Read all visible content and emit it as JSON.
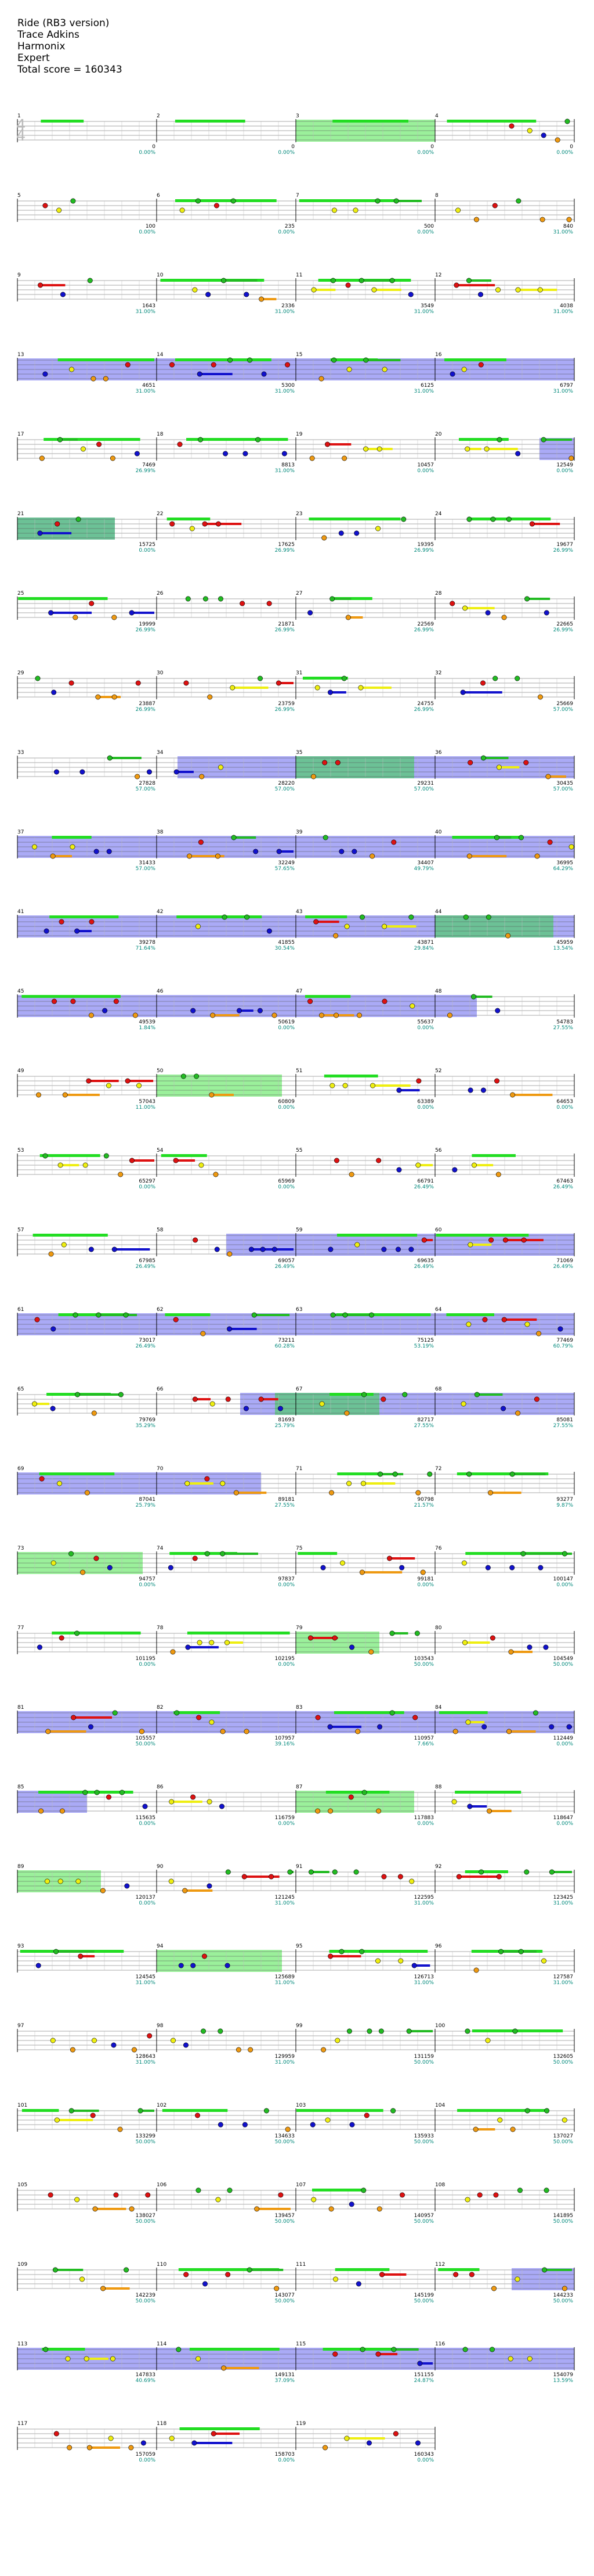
{
  "header": {
    "song": "Ride (RB3 version)",
    "artist": "Trace Adkins",
    "game": "Harmonix",
    "difficulty": "Expert",
    "total_score": "Total score = 160343"
  },
  "time_signature": {
    "top": "4",
    "bottom": "4"
  },
  "colors": {
    "green": "#22bb22",
    "red": "#dd1111",
    "yellow": "#eeee11",
    "blue": "#1111cc",
    "orange": "#ee9911",
    "overdrive": "#22dd22",
    "solo": "#5555ee",
    "number_red": "#cc3333",
    "percent": "#00897b"
  },
  "chart_data": {
    "type": "table",
    "title": "Ride (RB3 version)",
    "measures": [
      {
        "n": 1,
        "score": "0",
        "pct": "0.00%"
      },
      {
        "n": 2,
        "score": "0",
        "pct": "0.00%"
      },
      {
        "n": 3,
        "score": "0",
        "pct": "0.00%"
      },
      {
        "n": 4,
        "score": "0",
        "pct": "0.00%"
      },
      {
        "n": 5,
        "score": "100",
        "pct": "0.00%"
      },
      {
        "n": 6,
        "score": "235",
        "pct": "0.00%"
      },
      {
        "n": 7,
        "score": "500",
        "pct": "0.00%"
      },
      {
        "n": 8,
        "score": "840",
        "pct": "31.00%"
      },
      {
        "n": 9,
        "score": "1643",
        "pct": "31.00%"
      },
      {
        "n": 10,
        "score": "2336",
        "pct": "31.00%"
      },
      {
        "n": 11,
        "score": "3549",
        "pct": "31.00%"
      },
      {
        "n": 12,
        "score": "4038",
        "pct": "31.00%"
      },
      {
        "n": 13,
        "score": "4651",
        "pct": "31.00%"
      },
      {
        "n": 14,
        "score": "5300",
        "pct": "31.00%"
      },
      {
        "n": 15,
        "score": "6125",
        "pct": "31.00%"
      },
      {
        "n": 16,
        "score": "6797",
        "pct": "31.00%"
      },
      {
        "n": 17,
        "score": "7469",
        "pct": "26.99%"
      },
      {
        "n": 18,
        "score": "8813",
        "pct": "31.00%"
      },
      {
        "n": 19,
        "score": "10457",
        "pct": "0.00%"
      },
      {
        "n": 20,
        "score": "12549",
        "pct": "0.00%"
      },
      {
        "n": 21,
        "score": "15725",
        "pct": "0.00%"
      },
      {
        "n": 22,
        "score": "17625",
        "pct": "26.99%"
      },
      {
        "n": 23,
        "score": "19395",
        "pct": "26.99%"
      },
      {
        "n": 24,
        "score": "19677",
        "pct": "26.99%"
      },
      {
        "n": 25,
        "score": "19999",
        "pct": "26.99%"
      },
      {
        "n": 26,
        "score": "21871",
        "pct": "26.99%"
      },
      {
        "n": 27,
        "score": "22569",
        "pct": "26.99%"
      },
      {
        "n": 28,
        "score": "22665",
        "pct": "26.99%"
      },
      {
        "n": 29,
        "score": "23887",
        "pct": "26.99%"
      },
      {
        "n": 30,
        "score": "23759",
        "pct": "26.99%"
      },
      {
        "n": 31,
        "score": "24755",
        "pct": "26.99%"
      },
      {
        "n": 32,
        "score": "25669",
        "pct": "57.00%"
      },
      {
        "n": 33,
        "score": "27828",
        "pct": "57.00%"
      },
      {
        "n": 34,
        "score": "28220",
        "pct": "57.00%"
      },
      {
        "n": 35,
        "score": "29231",
        "pct": "57.00%"
      },
      {
        "n": 36,
        "score": "30435",
        "pct": "57.00%"
      },
      {
        "n": 37,
        "score": "31433",
        "pct": "57.00%"
      },
      {
        "n": 38,
        "score": "32249",
        "pct": "57.65%"
      },
      {
        "n": 39,
        "score": "34407",
        "pct": "49.79%"
      },
      {
        "n": 40,
        "score": "36995",
        "pct": "64.29%"
      },
      {
        "n": 41,
        "score": "39278",
        "pct": "71.64%"
      },
      {
        "n": 42,
        "score": "41855",
        "pct": "30.54%"
      },
      {
        "n": 43,
        "score": "43871",
        "pct": "29.84%"
      },
      {
        "n": 44,
        "score": "45959",
        "pct": "13.54%"
      },
      {
        "n": 45,
        "score": "49539",
        "pct": "1.84%"
      },
      {
        "n": 46,
        "score": "50619",
        "pct": "0.00%"
      },
      {
        "n": 47,
        "score": "55637",
        "pct": "0.00%"
      },
      {
        "n": 48,
        "score": "54783",
        "pct": "27.55%"
      },
      {
        "n": 49,
        "score": "57043",
        "pct": "11.00%"
      },
      {
        "n": 50,
        "score": "60809",
        "pct": "0.00%"
      },
      {
        "n": 51,
        "score": "63389",
        "pct": "0.00%"
      },
      {
        "n": 52,
        "score": "64653",
        "pct": "0.00%"
      },
      {
        "n": 53,
        "score": "65297",
        "pct": "0.00%"
      },
      {
        "n": 54,
        "score": "65969",
        "pct": "0.00%"
      },
      {
        "n": 55,
        "score": "66791",
        "pct": "26.49%"
      },
      {
        "n": 56,
        "score": "67463",
        "pct": "26.49%"
      },
      {
        "n": 57,
        "score": "67985",
        "pct": "26.49%"
      },
      {
        "n": 58,
        "score": "69057",
        "pct": "26.49%"
      },
      {
        "n": 59,
        "score": "69635",
        "pct": "26.49%"
      },
      {
        "n": 60,
        "score": "71069",
        "pct": "26.49%"
      },
      {
        "n": 61,
        "score": "73017",
        "pct": "26.49%"
      },
      {
        "n": 62,
        "score": "73211",
        "pct": "60.28%"
      },
      {
        "n": 63,
        "score": "75125",
        "pct": "53.19%"
      },
      {
        "n": 64,
        "score": "77469",
        "pct": "60.79%"
      },
      {
        "n": 65,
        "score": "79769",
        "pct": "35.29%"
      },
      {
        "n": 66,
        "score": "81693",
        "pct": "25.79%"
      },
      {
        "n": 67,
        "score": "82717",
        "pct": "27.55%"
      },
      {
        "n": 68,
        "score": "85081",
        "pct": "27.55%"
      },
      {
        "n": 69,
        "score": "87041",
        "pct": "25.79%"
      },
      {
        "n": 70,
        "score": "89181",
        "pct": "27.55%"
      },
      {
        "n": 71,
        "score": "90798",
        "pct": "21.57%"
      },
      {
        "n": 72,
        "score": "93277",
        "pct": "9.87%"
      },
      {
        "n": 73,
        "score": "94757",
        "pct": "0.00%"
      },
      {
        "n": 74,
        "score": "97837",
        "pct": "0.00%"
      },
      {
        "n": 75,
        "score": "99181",
        "pct": "0.00%"
      },
      {
        "n": 76,
        "score": "100147",
        "pct": "0.00%"
      },
      {
        "n": 77,
        "score": "101195",
        "pct": "0.00%"
      },
      {
        "n": 78,
        "score": "102195",
        "pct": "0.00%"
      },
      {
        "n": 79,
        "score": "103543",
        "pct": "50.00%"
      },
      {
        "n": 80,
        "score": "104549",
        "pct": "50.00%"
      },
      {
        "n": 81,
        "score": "105557",
        "pct": "50.00%"
      },
      {
        "n": 82,
        "score": "107957",
        "pct": "39.16%"
      },
      {
        "n": 83,
        "score": "110957",
        "pct": "7.66%"
      },
      {
        "n": 84,
        "score": "112449",
        "pct": "0.00%"
      },
      {
        "n": 85,
        "score": "115635",
        "pct": "0.00%"
      },
      {
        "n": 86,
        "score": "116759",
        "pct": "0.00%"
      },
      {
        "n": 87,
        "score": "117883",
        "pct": "0.00%"
      },
      {
        "n": 88,
        "score": "118647",
        "pct": "0.00%"
      },
      {
        "n": 89,
        "score": "120137",
        "pct": "0.00%"
      },
      {
        "n": 90,
        "score": "121245",
        "pct": "31.00%"
      },
      {
        "n": 91,
        "score": "122595",
        "pct": "31.00%"
      },
      {
        "n": 92,
        "score": "123425",
        "pct": "31.00%"
      },
      {
        "n": 93,
        "score": "124545",
        "pct": "31.00%"
      },
      {
        "n": 94,
        "score": "125689",
        "pct": "31.00%"
      },
      {
        "n": 95,
        "score": "126713",
        "pct": "31.00%"
      },
      {
        "n": 96,
        "score": "127587",
        "pct": "31.00%"
      },
      {
        "n": 97,
        "score": "128643",
        "pct": "31.00%"
      },
      {
        "n": 98,
        "score": "129959",
        "pct": "31.00%"
      },
      {
        "n": 99,
        "score": "131159",
        "pct": "50.00%"
      },
      {
        "n": 100,
        "score": "132605",
        "pct": "50.00%"
      },
      {
        "n": 101,
        "score": "133299",
        "pct": "50.00%"
      },
      {
        "n": 102,
        "score": "134633",
        "pct": "50.00%"
      },
      {
        "n": 103,
        "score": "135933",
        "pct": "50.00%"
      },
      {
        "n": 104,
        "score": "137027",
        "pct": "50.00%"
      },
      {
        "n": 105,
        "score": "138027",
        "pct": "50.00%"
      },
      {
        "n": 106,
        "score": "139457",
        "pct": "50.00%"
      },
      {
        "n": 107,
        "score": "140957",
        "pct": "50.00%"
      },
      {
        "n": 108,
        "score": "141895",
        "pct": "50.00%"
      },
      {
        "n": 109,
        "score": "142239",
        "pct": "50.00%"
      },
      {
        "n": 110,
        "score": "143077",
        "pct": "50.00%"
      },
      {
        "n": 111,
        "score": "145199",
        "pct": "50.00%"
      },
      {
        "n": 112,
        "score": "144233",
        "pct": "50.00%"
      },
      {
        "n": 113,
        "score": "147833",
        "pct": "40.69%"
      },
      {
        "n": 114,
        "score": "149131",
        "pct": "37.09%"
      },
      {
        "n": 115,
        "score": "151155",
        "pct": "24.87%"
      },
      {
        "n": 116,
        "score": "154079",
        "pct": "13.59%"
      },
      {
        "n": 117,
        "score": "157059",
        "pct": "0.00%"
      },
      {
        "n": 118,
        "score": "158703",
        "pct": "0.00%"
      },
      {
        "n": 119,
        "score": "160343",
        "pct": "0.00%"
      }
    ]
  }
}
